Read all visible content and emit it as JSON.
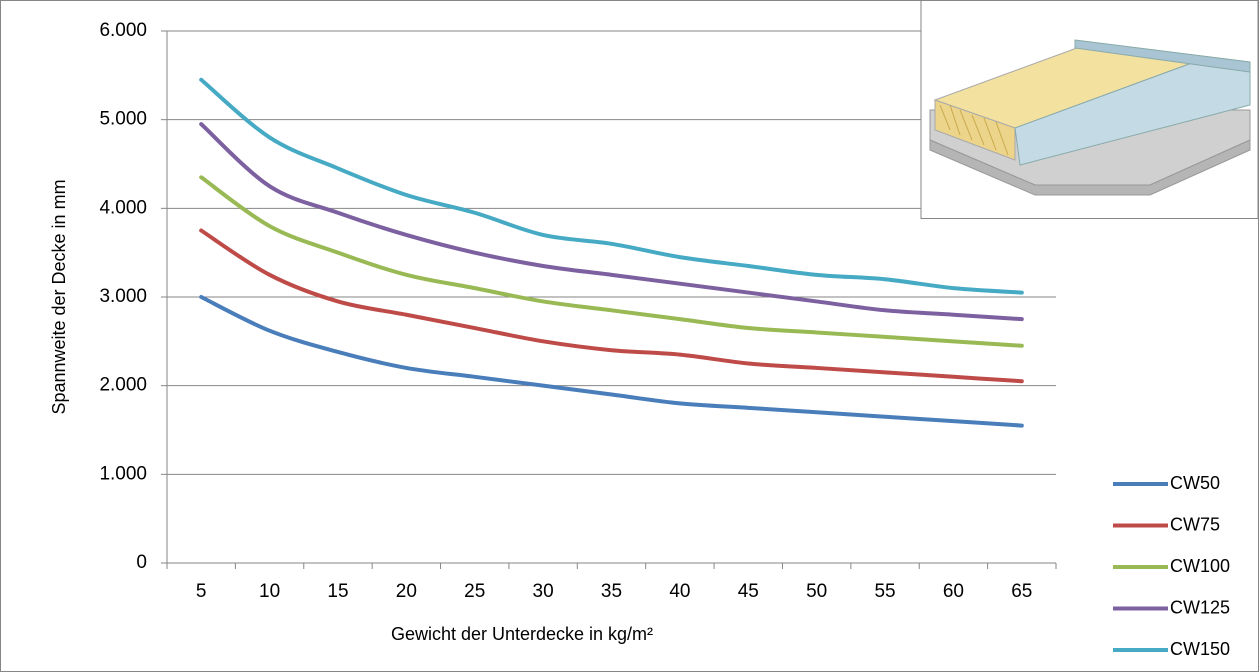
{
  "chart_data": {
    "type": "line",
    "x_label": "Gewicht der Unterdecke in kg/m²",
    "y_label": "Spannweite der Decke in mm",
    "categories": [
      "5",
      "10",
      "15",
      "20",
      "25",
      "30",
      "35",
      "40",
      "45",
      "50",
      "55",
      "60",
      "65"
    ],
    "series": [
      {
        "name": "CW50",
        "color": "#4a7ebb",
        "values": [
          3000,
          2620,
          2380,
          2200,
          2100,
          2000,
          1900,
          1800,
          1750,
          1700,
          1650,
          1600,
          1550
        ]
      },
      {
        "name": "CW75",
        "color": "#be4b48",
        "values": [
          3750,
          3250,
          2950,
          2800,
          2650,
          2500,
          2400,
          2350,
          2250,
          2200,
          2150,
          2100,
          2050
        ]
      },
      {
        "name": "CW100",
        "color": "#98b954",
        "values": [
          4350,
          3800,
          3500,
          3250,
          3100,
          2950,
          2850,
          2750,
          2650,
          2600,
          2550,
          2500,
          2450
        ]
      },
      {
        "name": "CW125",
        "color": "#7d60a0",
        "values": [
          4950,
          4250,
          3950,
          3700,
          3500,
          3350,
          3250,
          3150,
          3050,
          2950,
          2850,
          2800,
          2750
        ]
      },
      {
        "name": "CW150",
        "color": "#46aac5",
        "values": [
          5450,
          4800,
          4450,
          4150,
          3950,
          3700,
          3600,
          3450,
          3350,
          3250,
          3200,
          3100,
          3050
        ]
      }
    ],
    "ylim": [
      0,
      6000
    ],
    "yticks": [
      0,
      {
        "value": 1000,
        "label": "1.000"
      },
      {
        "value": 2000,
        "label": "2.000"
      },
      {
        "value": 3000,
        "label": "3.000"
      },
      {
        "value": 4000,
        "label": "4.000"
      },
      {
        "value": 5000,
        "label": "5.000"
      },
      {
        "value": 6000,
        "label": "6.000"
      }
    ],
    "grid": true,
    "legend": "right"
  }
}
